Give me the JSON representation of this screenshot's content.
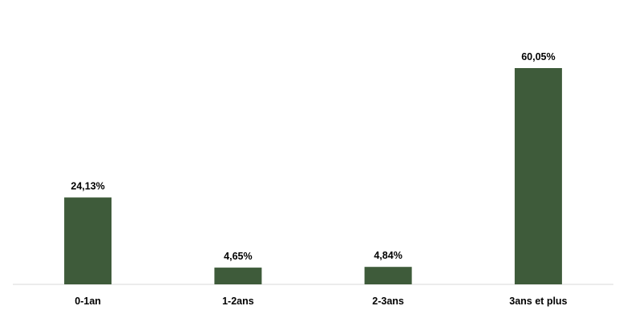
{
  "chart_data": {
    "type": "bar",
    "categories": [
      "0-1an",
      "1-2ans",
      "2-3ans",
      "3ans et plus"
    ],
    "values": [
      24.13,
      4.65,
      4.84,
      60.05
    ],
    "data_labels": [
      "24,13%",
      "4,65%",
      "4,84%",
      "60,05%"
    ],
    "title": "",
    "xlabel": "",
    "ylabel": "",
    "ylim": [
      0,
      65
    ],
    "grid": false,
    "legend": "none",
    "colors": {
      "bar": "#3e5b3a",
      "axis": "#d9d9d9"
    }
  }
}
